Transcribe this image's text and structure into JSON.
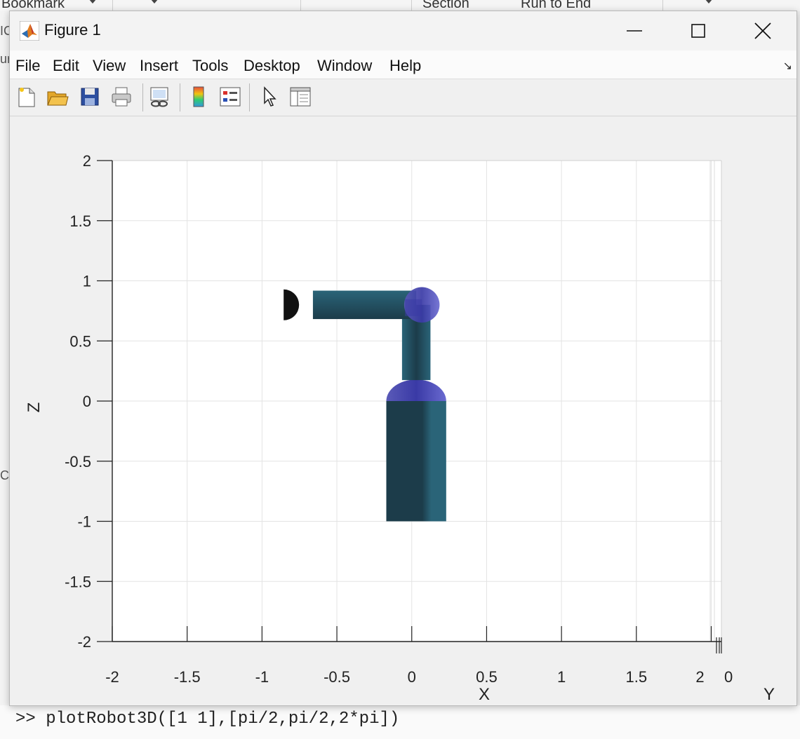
{
  "background": {
    "top_labels": [
      "Bookmark",
      "Section",
      "Run to End"
    ],
    "left_labels": [
      "IC",
      "ur",
      "Co"
    ],
    "command_line": ">> plotRobot3D([1 1],[pi/2,pi/2,2*pi])"
  },
  "window": {
    "title": "Figure 1",
    "icon": "matlab-icon",
    "controls": [
      "minimize-icon",
      "maximize-icon",
      "close-icon"
    ]
  },
  "menu": {
    "items": [
      "File",
      "Edit",
      "View",
      "Insert",
      "Tools",
      "Desktop",
      "Window",
      "Help"
    ],
    "corner_icon": "dock-arrow-icon"
  },
  "toolbar": {
    "buttons": [
      "new-figure-icon",
      "open-file-icon",
      "save-icon",
      "print-icon",
      "link-plot-icon",
      "colorbar-icon",
      "legend-icon",
      "edit-plot-icon",
      "property-inspector-icon"
    ]
  },
  "chart_data": {
    "type": "3d-surface-view",
    "xlabel": "X",
    "zlabel": "Z",
    "ylabel": "Y",
    "x_ticks": [
      "-2",
      "-1.5",
      "-1",
      "-0.5",
      "0",
      "0.5",
      "1",
      "1.5",
      "2"
    ],
    "y_tick_edge": "0",
    "z_ticks": [
      "2",
      "1.5",
      "1",
      "0.5",
      "0",
      "-0.5",
      "-1",
      "-1.5",
      "-2"
    ],
    "xlim": [
      -2,
      2
    ],
    "zlim": [
      -2,
      2
    ],
    "grid": true,
    "colors": {
      "link": "#2a6478",
      "link_dark": "#1c3c4a",
      "joint": "#3a3aa6",
      "end_effector": "#111111"
    },
    "robot": {
      "base": {
        "x": [
          -0.17,
          0.23
        ],
        "z": [
          -1,
          0
        ]
      },
      "joints": [
        {
          "x": 0.03,
          "z": 0
        },
        {
          "x": 0.03,
          "z": 0.8
        }
      ],
      "links": [
        {
          "from": [
            0.03,
            0
          ],
          "to": [
            0.03,
            0.8
          ],
          "width": 0.19
        },
        {
          "from": [
            0.03,
            0.8
          ],
          "to": [
            -0.66,
            0.8
          ],
          "width": 0.19
        }
      ],
      "end_effector": {
        "x": -0.79,
        "z": 0.8
      }
    }
  }
}
